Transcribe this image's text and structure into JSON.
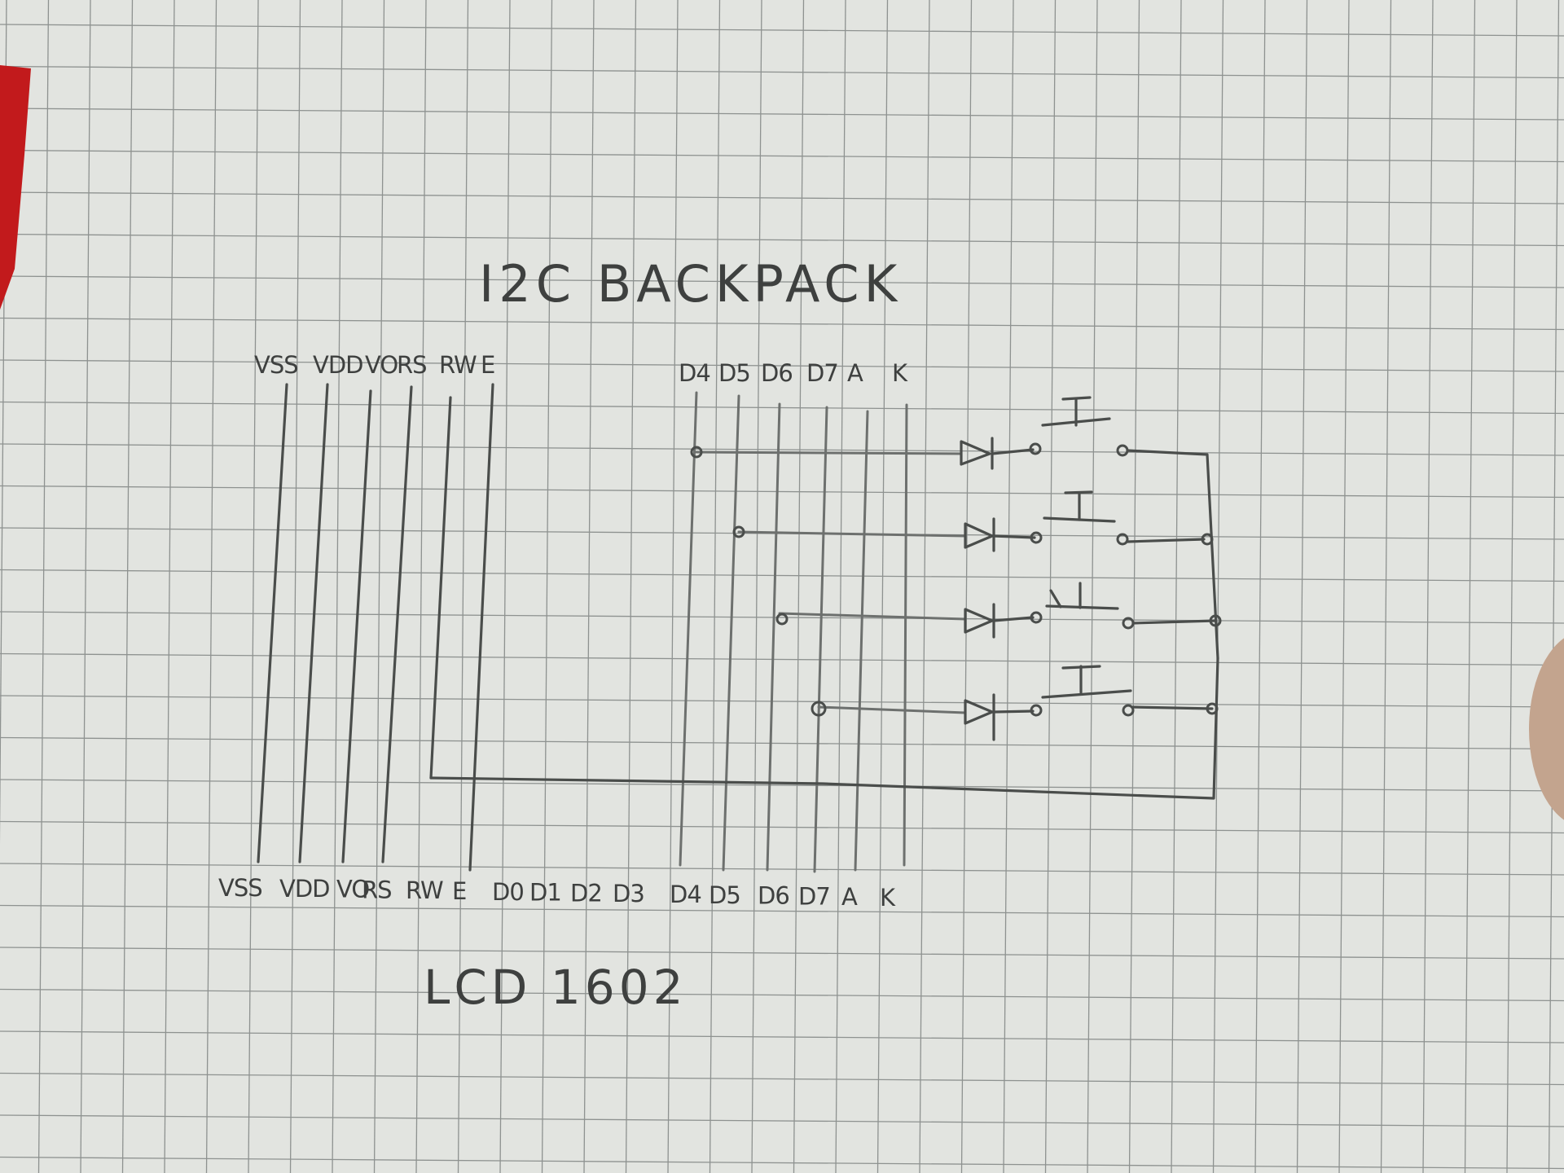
{
  "diagram": {
    "title": "I2C BACKPACK",
    "footer": "LCD 1602",
    "top_pins_left": [
      "VSS",
      "VDD",
      "VO",
      "RS",
      "RW",
      "E"
    ],
    "top_pins_right": [
      "D4",
      "D5",
      "D6",
      "D7",
      "A",
      "K"
    ],
    "bottom_pins": [
      "VSS",
      "VDD",
      "VO",
      "RS",
      "RW",
      "E",
      "D0",
      "D1",
      "D2",
      "D3",
      "D4",
      "D5",
      "D6",
      "D7",
      "A",
      "K"
    ],
    "keypad": {
      "rows": 4,
      "components_per_row": [
        "diode-icon",
        "pushbutton-icon"
      ]
    }
  }
}
